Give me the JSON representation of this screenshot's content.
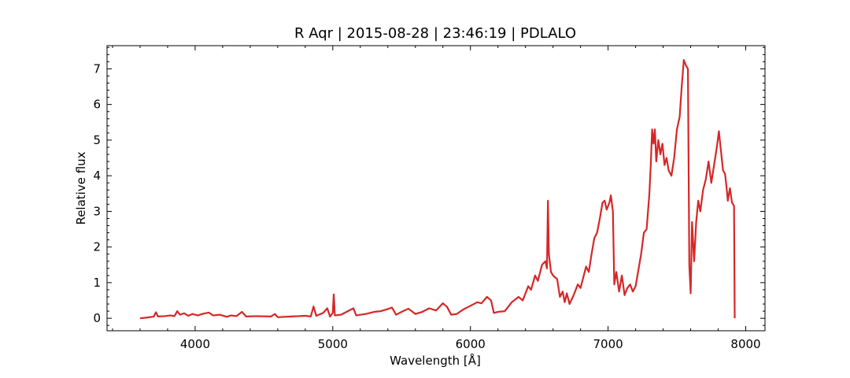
{
  "chart_data": {
    "type": "line",
    "title": "R Aqr | 2015-08-28 | 23:46:19 | PDLALO",
    "xlabel": "Wavelength [Å]",
    "ylabel": "Relative flux",
    "xlim": [
      3360,
      8140
    ],
    "ylim": [
      -0.35,
      7.65
    ],
    "xticks": [
      4000,
      5000,
      6000,
      7000,
      8000
    ],
    "yticks": [
      0,
      1,
      2,
      3,
      4,
      5,
      6,
      7
    ],
    "grid": false,
    "series": [
      {
        "color": "#d62728",
        "points": [
          [
            3600,
            0.0
          ],
          [
            3650,
            0.02
          ],
          [
            3700,
            0.05
          ],
          [
            3715,
            0.17
          ],
          [
            3730,
            0.05
          ],
          [
            3780,
            0.06
          ],
          [
            3820,
            0.08
          ],
          [
            3850,
            0.06
          ],
          [
            3870,
            0.2
          ],
          [
            3890,
            0.1
          ],
          [
            3920,
            0.14
          ],
          [
            3950,
            0.07
          ],
          [
            3980,
            0.12
          ],
          [
            4020,
            0.08
          ],
          [
            4060,
            0.13
          ],
          [
            4100,
            0.16
          ],
          [
            4130,
            0.08
          ],
          [
            4180,
            0.1
          ],
          [
            4230,
            0.04
          ],
          [
            4260,
            0.08
          ],
          [
            4300,
            0.06
          ],
          [
            4340,
            0.18
          ],
          [
            4370,
            0.05
          ],
          [
            4450,
            0.06
          ],
          [
            4550,
            0.05
          ],
          [
            4580,
            0.12
          ],
          [
            4600,
            0.03
          ],
          [
            4700,
            0.05
          ],
          [
            4800,
            0.07
          ],
          [
            4840,
            0.05
          ],
          [
            4860,
            0.33
          ],
          [
            4880,
            0.07
          ],
          [
            4930,
            0.15
          ],
          [
            4960,
            0.28
          ],
          [
            4980,
            0.05
          ],
          [
            5000,
            0.15
          ],
          [
            5007,
            0.67
          ],
          [
            5015,
            0.08
          ],
          [
            5060,
            0.1
          ],
          [
            5100,
            0.18
          ],
          [
            5150,
            0.28
          ],
          [
            5170,
            0.08
          ],
          [
            5250,
            0.13
          ],
          [
            5300,
            0.18
          ],
          [
            5350,
            0.2
          ],
          [
            5400,
            0.26
          ],
          [
            5430,
            0.3
          ],
          [
            5460,
            0.1
          ],
          [
            5500,
            0.18
          ],
          [
            5550,
            0.27
          ],
          [
            5600,
            0.12
          ],
          [
            5650,
            0.18
          ],
          [
            5700,
            0.28
          ],
          [
            5750,
            0.22
          ],
          [
            5800,
            0.42
          ],
          [
            5830,
            0.32
          ],
          [
            5860,
            0.1
          ],
          [
            5900,
            0.12
          ],
          [
            5950,
            0.25
          ],
          [
            6000,
            0.35
          ],
          [
            6050,
            0.45
          ],
          [
            6080,
            0.42
          ],
          [
            6120,
            0.6
          ],
          [
            6150,
            0.5
          ],
          [
            6170,
            0.15
          ],
          [
            6200,
            0.18
          ],
          [
            6250,
            0.2
          ],
          [
            6300,
            0.45
          ],
          [
            6350,
            0.6
          ],
          [
            6380,
            0.5
          ],
          [
            6400,
            0.7
          ],
          [
            6420,
            0.9
          ],
          [
            6440,
            0.8
          ],
          [
            6470,
            1.2
          ],
          [
            6490,
            1.05
          ],
          [
            6520,
            1.5
          ],
          [
            6545,
            1.6
          ],
          [
            6556,
            1.4
          ],
          [
            6563,
            3.3
          ],
          [
            6570,
            1.8
          ],
          [
            6585,
            1.3
          ],
          [
            6600,
            1.2
          ],
          [
            6630,
            1.1
          ],
          [
            6650,
            0.6
          ],
          [
            6670,
            0.75
          ],
          [
            6685,
            0.45
          ],
          [
            6700,
            0.7
          ],
          [
            6720,
            0.4
          ],
          [
            6750,
            0.65
          ],
          [
            6780,
            0.95
          ],
          [
            6800,
            0.85
          ],
          [
            6820,
            1.15
          ],
          [
            6840,
            1.45
          ],
          [
            6860,
            1.3
          ],
          [
            6880,
            1.8
          ],
          [
            6900,
            2.25
          ],
          [
            6920,
            2.4
          ],
          [
            6940,
            2.8
          ],
          [
            6960,
            3.25
          ],
          [
            6975,
            3.3
          ],
          [
            6990,
            3.05
          ],
          [
            7010,
            3.25
          ],
          [
            7020,
            3.45
          ],
          [
            7035,
            3.0
          ],
          [
            7045,
            0.95
          ],
          [
            7060,
            1.3
          ],
          [
            7080,
            0.75
          ],
          [
            7100,
            1.2
          ],
          [
            7120,
            0.65
          ],
          [
            7140,
            0.85
          ],
          [
            7160,
            0.95
          ],
          [
            7180,
            0.75
          ],
          [
            7200,
            0.9
          ],
          [
            7220,
            1.35
          ],
          [
            7240,
            1.8
          ],
          [
            7260,
            2.4
          ],
          [
            7280,
            2.5
          ],
          [
            7300,
            3.5
          ],
          [
            7310,
            4.3
          ],
          [
            7320,
            5.3
          ],
          [
            7330,
            4.9
          ],
          [
            7340,
            5.3
          ],
          [
            7350,
            4.4
          ],
          [
            7365,
            5.0
          ],
          [
            7380,
            4.6
          ],
          [
            7395,
            4.9
          ],
          [
            7410,
            4.3
          ],
          [
            7425,
            4.5
          ],
          [
            7440,
            4.15
          ],
          [
            7460,
            4.0
          ],
          [
            7480,
            4.5
          ],
          [
            7500,
            5.3
          ],
          [
            7520,
            5.65
          ],
          [
            7535,
            6.5
          ],
          [
            7550,
            7.25
          ],
          [
            7565,
            7.1
          ],
          [
            7580,
            7.0
          ],
          [
            7590,
            1.5
          ],
          [
            7600,
            0.7
          ],
          [
            7610,
            2.7
          ],
          [
            7625,
            1.6
          ],
          [
            7640,
            2.7
          ],
          [
            7655,
            3.3
          ],
          [
            7670,
            3.0
          ],
          [
            7690,
            3.6
          ],
          [
            7710,
            3.9
          ],
          [
            7730,
            4.4
          ],
          [
            7750,
            3.8
          ],
          [
            7770,
            4.3
          ],
          [
            7790,
            4.8
          ],
          [
            7805,
            5.25
          ],
          [
            7820,
            4.7
          ],
          [
            7835,
            4.15
          ],
          [
            7850,
            4.05
          ],
          [
            7860,
            3.7
          ],
          [
            7870,
            3.3
          ],
          [
            7885,
            3.65
          ],
          [
            7900,
            3.25
          ],
          [
            7915,
            3.15
          ],
          [
            7920,
            0.0
          ]
        ]
      }
    ]
  }
}
